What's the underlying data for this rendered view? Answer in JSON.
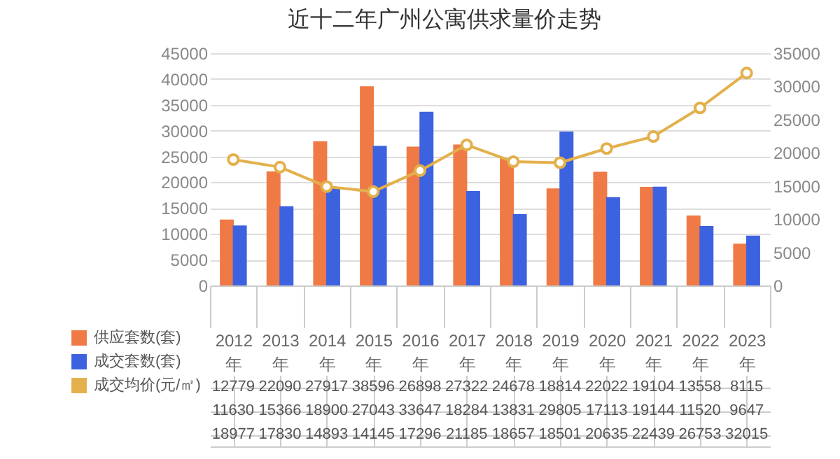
{
  "chart_data": {
    "type": "bar",
    "title": "近十二年广州公寓供求量价走势",
    "categories": [
      "2012年",
      "2013年",
      "2014年",
      "2015年",
      "2016年",
      "2017年",
      "2018年",
      "2019年",
      "2020年",
      "2021年",
      "2022年",
      "2023年"
    ],
    "series": [
      {
        "name": "供应套数(套)",
        "color": "#f07a45",
        "values": [
          12779,
          22090,
          27917,
          38596,
          26898,
          27322,
          24678,
          18814,
          22022,
          19104,
          13558,
          8115
        ]
      },
      {
        "name": "成交套数(套)",
        "color": "#3d62e0",
        "values": [
          11630,
          15366,
          18900,
          27043,
          33647,
          18284,
          13831,
          29805,
          17113,
          19144,
          11520,
          9647
        ]
      },
      {
        "name": "成交均价(元/㎡)",
        "color": "#e3b04b",
        "type": "line",
        "axis": "y2",
        "values": [
          18977,
          17830,
          14893,
          14145,
          17296,
          21185,
          18657,
          18501,
          20635,
          22439,
          26753,
          32015
        ]
      }
    ],
    "ylim": [
      0,
      45000
    ],
    "yticks": [
      0,
      5000,
      10000,
      15000,
      20000,
      25000,
      30000,
      35000,
      40000,
      45000
    ],
    "y2lim": [
      0,
      35000
    ],
    "y2ticks": [
      0,
      5000,
      10000,
      15000,
      20000,
      25000,
      30000,
      35000
    ],
    "grid": "y",
    "legend": "bottom",
    "marker": "circle",
    "data_labels": true
  }
}
